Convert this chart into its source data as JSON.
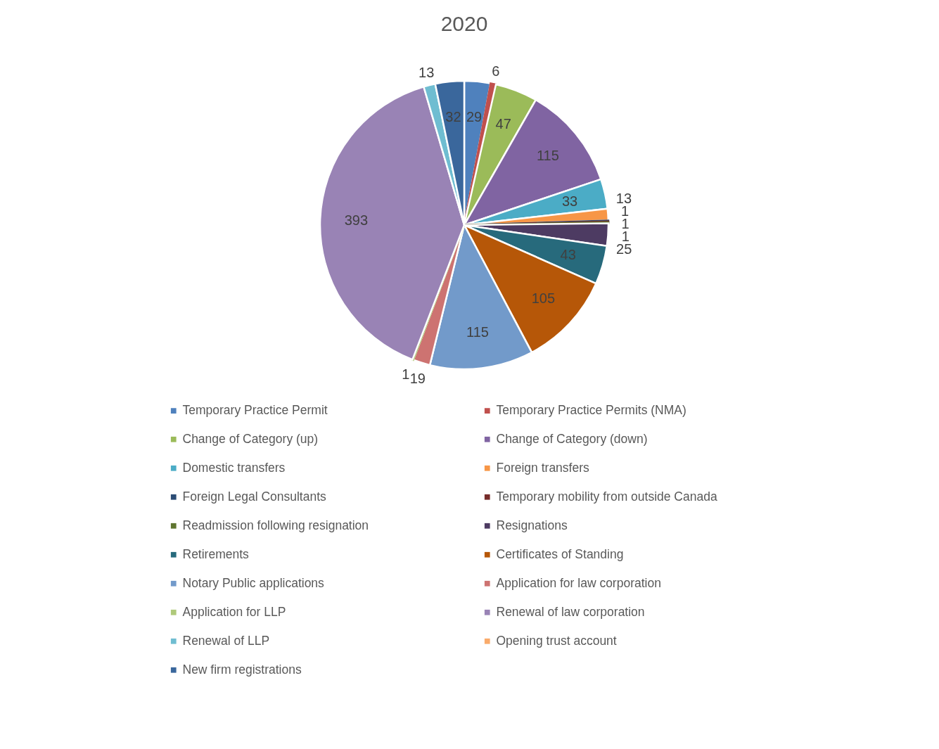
{
  "chart_data": {
    "type": "pie",
    "title": "2020",
    "categories": [
      "Temporary Practice Permit",
      "Temporary Practice Permits (NMA)",
      "Change of Category (up)",
      "Change of Category (down)",
      "Domestic transfers",
      "Foreign transfers",
      "Foreign Legal Consultants",
      "Temporary mobility from outside Canada",
      "Readmission following resignation",
      "Resignations",
      "Retirements",
      "Certificates of Standing",
      "Notary Public applications",
      "Application for law corporation",
      "Application for LLP",
      "Renewal of law corporation",
      "Renewal of LLP",
      "Opening trust account",
      "New firm registrations"
    ],
    "values": [
      29,
      6,
      47,
      115,
      33,
      13,
      1,
      1,
      1,
      25,
      43,
      105,
      115,
      19,
      1,
      393,
      13,
      null,
      32
    ],
    "colors": [
      "#4f81bd",
      "#c0504d",
      "#9bbb59",
      "#8064a2",
      "#4bacc6",
      "#f79646",
      "#2c4d75",
      "#772c2a",
      "#5f7530",
      "#4d3b62",
      "#276a7c",
      "#b65708",
      "#729aca",
      "#cd7371",
      "#afc97a",
      "#9983b5",
      "#6fbdd1",
      "#f9ab6b",
      "#3a679c"
    ],
    "data_labels": true,
    "legend": "bottom"
  }
}
